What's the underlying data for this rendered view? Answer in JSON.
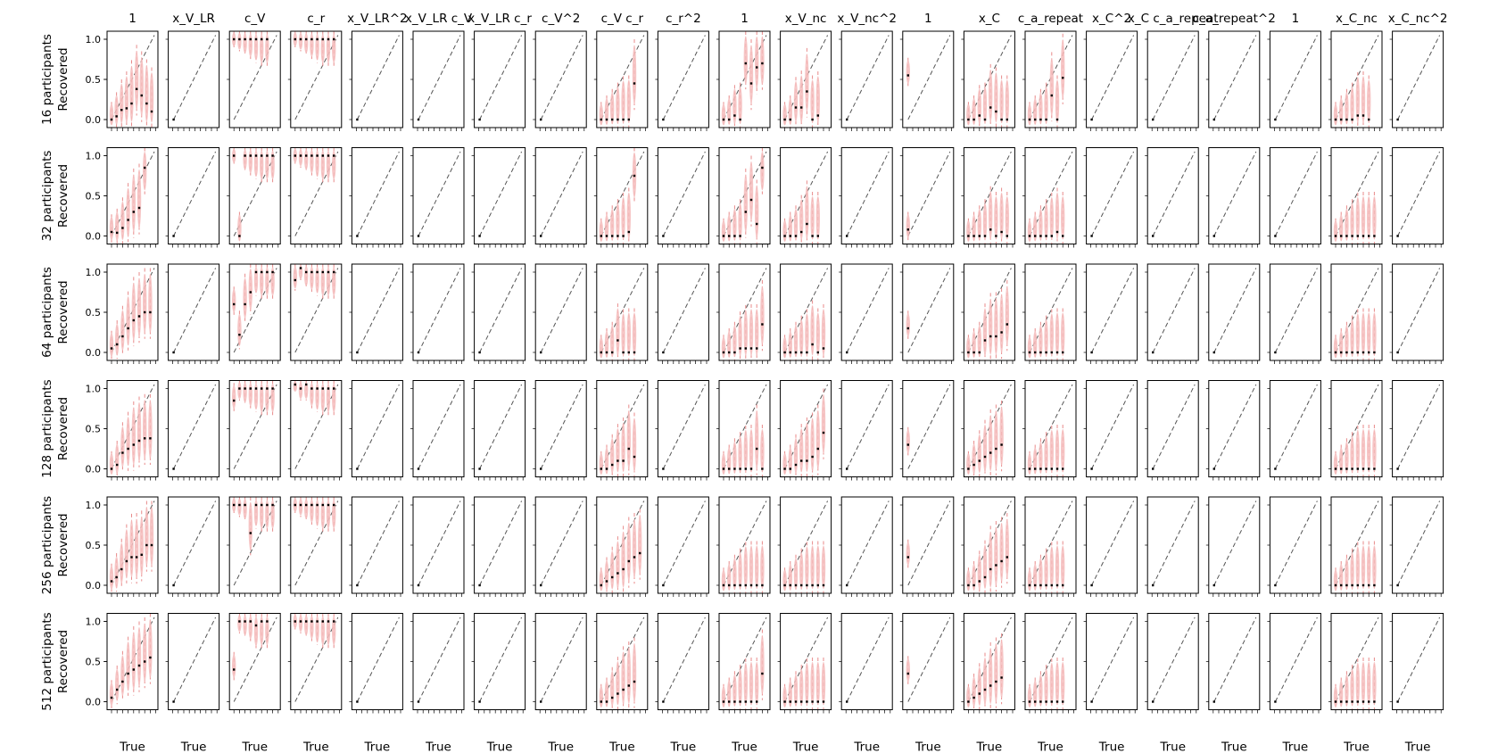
{
  "figure": {
    "panel_titles": [
      "1",
      "x_V_LR",
      "c_V",
      "c_r",
      "x_V_LR^2",
      "x_V_LR c_V",
      "x_V_LR c_r",
      "c_V^2",
      "c_V c_r",
      "c_r^2",
      "1",
      "x_V_nc",
      "x_V_nc^2",
      "1",
      "x_C",
      "c_a_repeat",
      "x_C^2",
      "x_C c_a_repeat",
      "c_a_repeat^2",
      "1",
      "x_C_nc",
      "x_C_nc^2"
    ],
    "row_labels": [
      "16 participants\nRecovered",
      "32 participants\nRecovered",
      "64 participants\nRecovered",
      "128 participants\nRecovered",
      "256 participants\nRecovered",
      "512 participants\nRecovered"
    ],
    "xlabel": "True",
    "ytick_labels": [
      "0.0",
      "0.5",
      "1.0"
    ],
    "colors": {
      "violin": "#f4bcbc",
      "whisker": "#e88a8a",
      "median": "#000000",
      "identity": "#555555"
    }
  },
  "chart_data": {
    "type": "violin",
    "description_of_grid": "6 rows (participants) x 22 columns (parameters); each panel plots recovered vs true parameter with dashed identity line",
    "ylim": [
      -0.1,
      1.1
    ],
    "xlabel": "True",
    "ylabel": "Recovered",
    "rows": [
      16,
      32,
      64,
      128,
      256,
      512
    ],
    "medians": [
      [
        [
          0.0,
          0.04,
          0.12,
          0.14,
          0.2,
          0.38,
          0.3,
          0.2,
          0.1
        ],
        [
          0.0
        ],
        [
          1.0,
          1.0,
          1.0,
          1.0,
          1.0,
          1.0,
          1.0
        ],
        [
          1.0,
          1.0,
          1.0,
          1.0,
          1.0,
          1.0,
          1.0,
          1.0
        ],
        [
          0.0
        ],
        [
          0.0
        ],
        [
          0.0
        ],
        [
          0.0
        ],
        [
          0.0,
          0.0,
          0.0,
          0.0,
          0.0,
          0.0,
          0.45
        ],
        [
          0.0
        ],
        [
          0.0,
          0.0,
          0.05,
          0.0,
          0.7,
          0.45,
          0.65,
          0.7
        ],
        [
          0.0,
          0.0,
          0.15,
          0.15,
          0.35,
          0.0,
          0.05
        ],
        [
          0.0
        ],
        [
          0.55
        ],
        [
          0.0,
          0.0,
          0.05,
          0.0,
          0.15,
          0.1,
          0.0,
          0.0
        ],
        [
          0.0,
          0.0,
          0.0,
          0.0,
          0.3,
          0.0,
          0.52
        ],
        [
          0.0
        ],
        [
          0.0
        ],
        [
          0.0
        ],
        [
          0.0
        ],
        [
          0.0,
          0.0,
          0.0,
          0.0,
          0.05,
          0.05,
          0.0
        ],
        [
          0.0
        ]
      ],
      [
        [
          0.05,
          0.04,
          0.1,
          0.2,
          0.3,
          0.35,
          0.85
        ],
        [
          0.0
        ],
        [
          1.0,
          0.0,
          1.0,
          1.0,
          1.0,
          1.0,
          1.0,
          1.0
        ],
        [
          1.0,
          1.0,
          1.0,
          1.0,
          1.0,
          1.0,
          1.0,
          1.0
        ],
        [
          0.0
        ],
        [
          0.0
        ],
        [
          0.0
        ],
        [
          0.0
        ],
        [
          0.0,
          0.0,
          0.0,
          0.0,
          0.0,
          0.05,
          0.75
        ],
        [
          0.0
        ],
        [
          0.0,
          0.0,
          0.0,
          0.0,
          0.3,
          0.45,
          0.15,
          0.85
        ],
        [
          0.0,
          0.0,
          0.0,
          0.05,
          0.15,
          0.0,
          0.0
        ],
        [
          0.0
        ],
        [
          0.08
        ],
        [
          0.0,
          0.0,
          0.0,
          0.0,
          0.08,
          0.0,
          0.05,
          0.0
        ],
        [
          0.0,
          0.0,
          0.0,
          0.0,
          0.0,
          0.05,
          0.0
        ],
        [
          0.0
        ],
        [
          0.0
        ],
        [
          0.0
        ],
        [
          0.0
        ],
        [
          0.0,
          0.0,
          0.0,
          0.0,
          0.0,
          0.0,
          0.0,
          0.0
        ],
        [
          0.0
        ]
      ],
      [
        [
          0.05,
          0.1,
          0.2,
          0.3,
          0.4,
          0.45,
          0.5,
          0.5
        ],
        [
          0.0
        ],
        [
          0.6,
          0.22,
          0.6,
          0.75,
          1.0,
          1.0,
          1.0,
          1.0
        ],
        [
          0.9,
          1.05,
          1.0,
          1.0,
          1.0,
          1.0,
          1.0,
          1.0
        ],
        [
          0.0
        ],
        [
          0.0
        ],
        [
          0.0
        ],
        [
          0.0
        ],
        [
          0.0,
          0.0,
          0.0,
          0.15,
          0.0,
          0.0,
          0.0
        ],
        [
          0.0
        ],
        [
          0.0,
          0.0,
          0.0,
          0.05,
          0.05,
          0.05,
          0.05,
          0.35
        ],
        [
          0.0,
          0.0,
          0.0,
          0.0,
          0.0,
          0.1,
          0.0,
          0.05
        ],
        [
          0.0
        ],
        [
          0.3
        ],
        [
          0.0,
          0.0,
          0.0,
          0.15,
          0.2,
          0.2,
          0.25,
          0.35
        ],
        [
          0.0,
          0.0,
          0.0,
          0.0,
          0.0,
          0.0,
          0.0
        ],
        [
          0.0
        ],
        [
          0.0
        ],
        [
          0.0
        ],
        [
          0.0
        ],
        [
          0.0,
          0.0,
          0.0,
          0.0,
          0.0,
          0.0,
          0.0,
          0.0
        ],
        [
          0.0
        ]
      ],
      [
        [
          0.0,
          0.05,
          0.2,
          0.25,
          0.3,
          0.35,
          0.38,
          0.38
        ],
        [
          0.0
        ],
        [
          0.85,
          1.0,
          1.0,
          1.0,
          1.0,
          1.0,
          1.0,
          1.0
        ],
        [
          1.05,
          1.0,
          1.05,
          1.0,
          1.0,
          1.0,
          1.0,
          1.0
        ],
        [
          0.0
        ],
        [
          0.0
        ],
        [
          0.0
        ],
        [
          0.0
        ],
        [
          0.0,
          0.0,
          0.05,
          0.1,
          0.1,
          0.25,
          0.15
        ],
        [
          0.0
        ],
        [
          0.0,
          0.0,
          0.0,
          0.0,
          0.0,
          0.0,
          0.25,
          0.0
        ],
        [
          0.0,
          0.0,
          0.05,
          0.1,
          0.1,
          0.15,
          0.25,
          0.45
        ],
        [
          0.0
        ],
        [
          0.3
        ],
        [
          0.0,
          0.05,
          0.1,
          0.15,
          0.2,
          0.25,
          0.3
        ],
        [
          0.0,
          0.0,
          0.0,
          0.0,
          0.0,
          0.0,
          0.0
        ],
        [
          0.0
        ],
        [
          0.0
        ],
        [
          0.0
        ],
        [
          0.0
        ],
        [
          0.0,
          0.0,
          0.0,
          0.0,
          0.0,
          0.0,
          0.0,
          0.0
        ],
        [
          0.0
        ]
      ],
      [
        [
          0.05,
          0.1,
          0.2,
          0.3,
          0.35,
          0.35,
          0.38,
          0.5,
          0.5
        ],
        [
          0.0
        ],
        [
          1.0,
          1.0,
          1.0,
          0.65,
          1.0,
          1.0,
          1.0,
          1.0
        ],
        [
          1.0,
          1.0,
          1.0,
          1.0,
          1.0,
          1.0,
          1.0,
          1.0
        ],
        [
          0.0
        ],
        [
          0.0
        ],
        [
          0.0
        ],
        [
          0.0
        ],
        [
          0.0,
          0.05,
          0.1,
          0.15,
          0.2,
          0.3,
          0.35,
          0.4
        ],
        [
          0.0
        ],
        [
          0.0,
          0.0,
          0.0,
          0.0,
          0.0,
          0.0,
          0.0,
          0.0
        ],
        [
          0.0,
          0.0,
          0.0,
          0.0,
          0.0,
          0.0,
          0.0,
          0.0
        ],
        [
          0.0
        ],
        [
          0.35
        ],
        [
          0.0,
          0.0,
          0.05,
          0.1,
          0.2,
          0.25,
          0.3,
          0.35
        ],
        [
          0.0,
          0.0,
          0.0,
          0.0,
          0.0,
          0.0,
          0.0
        ],
        [
          0.0
        ],
        [
          0.0
        ],
        [
          0.0
        ],
        [
          0.0
        ],
        [
          0.0,
          0.0,
          0.0,
          0.0,
          0.0,
          0.0,
          0.0,
          0.0
        ],
        [
          0.0
        ]
      ],
      [
        [
          0.05,
          0.15,
          0.25,
          0.35,
          0.4,
          0.45,
          0.5,
          0.55
        ],
        [
          0.0
        ],
        [
          0.4,
          1.0,
          1.0,
          1.0,
          0.95,
          1.0,
          1.0
        ],
        [
          1.0,
          1.0,
          1.0,
          1.0,
          1.0,
          1.0,
          1.0,
          1.0
        ],
        [
          0.0
        ],
        [
          0.0
        ],
        [
          0.0
        ],
        [
          0.0
        ],
        [
          0.0,
          0.0,
          0.05,
          0.1,
          0.15,
          0.2,
          0.25
        ],
        [
          0.0
        ],
        [
          0.0,
          0.0,
          0.0,
          0.0,
          0.0,
          0.0,
          0.0,
          0.35
        ],
        [
          0.0,
          0.0,
          0.0,
          0.0,
          0.0,
          0.0,
          0.0,
          0.0
        ],
        [
          0.0
        ],
        [
          0.35
        ],
        [
          0.0,
          0.05,
          0.1,
          0.15,
          0.2,
          0.25,
          0.3
        ],
        [
          0.0,
          0.0,
          0.0,
          0.0,
          0.0,
          0.0,
          0.0
        ],
        [
          0.0
        ],
        [
          0.0
        ],
        [
          0.0
        ],
        [
          0.0
        ],
        [
          0.0,
          0.0,
          0.0,
          0.0,
          0.0,
          0.0,
          0.0,
          0.0
        ],
        [
          0.0
        ]
      ]
    ]
  }
}
